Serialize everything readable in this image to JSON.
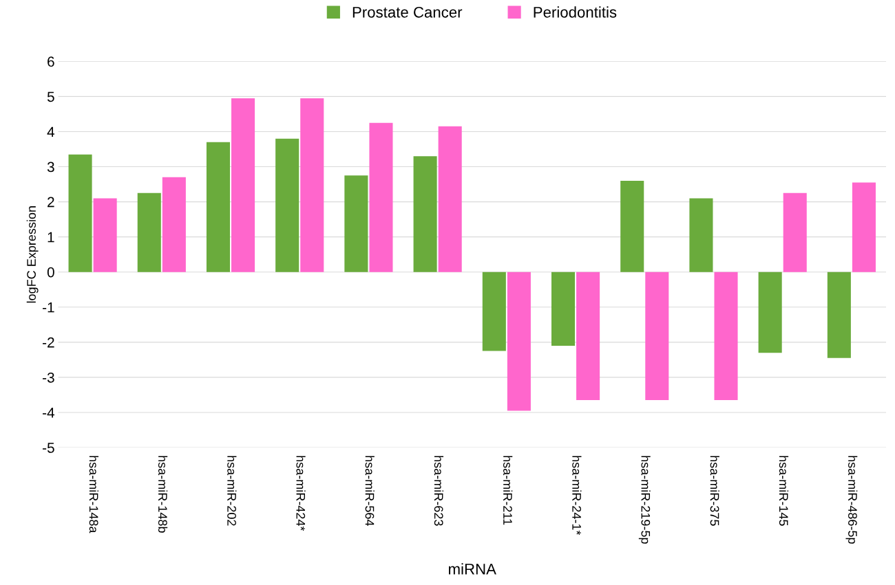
{
  "chart_data": {
    "type": "bar",
    "xlabel": "miRNA",
    "ylabel": "logFC Expression",
    "categories": [
      "hsa-miR-148a",
      "hsa-miR-148b",
      "hsa-miR-202",
      "hsa-miR-424*",
      "hsa-miR-564",
      "hsa-miR-623",
      "hsa-miR-211",
      "hsa-miR-24-1*",
      "hsa-miR-219-5p",
      "hsa-miR-375",
      "hsa-miR-145",
      "hsa-miR-486-5p"
    ],
    "series": [
      {
        "name": "Prostate Cancer",
        "color": "#6aab3c",
        "values": [
          3.35,
          2.25,
          3.7,
          3.8,
          2.75,
          3.3,
          -2.25,
          -2.1,
          2.6,
          2.1,
          -2.3,
          -2.45
        ]
      },
      {
        "name": "Periodontitis",
        "color": "#ff66cc",
        "values": [
          2.1,
          2.7,
          4.95,
          4.95,
          4.25,
          4.15,
          -3.95,
          -3.65,
          -3.65,
          -3.65,
          2.25,
          2.55
        ]
      }
    ],
    "ylim": [
      -5,
      6
    ],
    "yticks": [
      -5,
      -4,
      -3,
      -2,
      -1,
      0,
      1,
      2,
      3,
      4,
      5,
      6
    ],
    "grid": "y",
    "legend": "top"
  }
}
